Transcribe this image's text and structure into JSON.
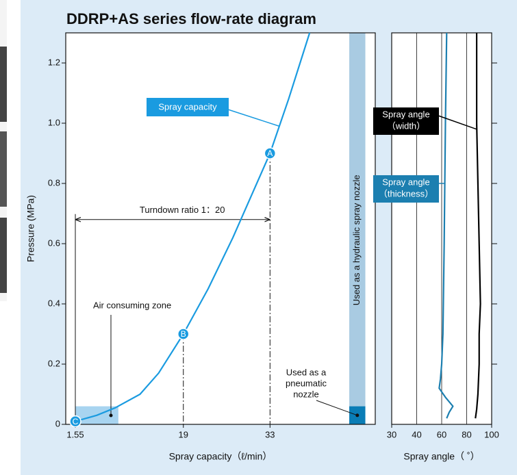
{
  "chart_data": [
    {
      "type": "line",
      "title": "DDRP+AS series flow-rate diagram",
      "x_label": "Spray capacity（ℓ/min）",
      "y_label": "Pressure (MPa)",
      "xlim": [
        0,
        50
      ],
      "ylim": [
        0,
        1.3
      ],
      "xticks": [
        1.55,
        19,
        33
      ],
      "yticks": [
        0,
        0.2,
        0.4,
        0.6,
        0.8,
        {
          "value": 1,
          "label": "1.0"
        },
        1.2
      ],
      "series": [
        {
          "name": "Spray capacity",
          "color": "#1a9be0",
          "x": [
            1.55,
            5,
            8,
            12,
            15,
            19,
            23,
            27,
            30,
            33,
            36,
            39.4
          ],
          "values": [
            0.01,
            0.03,
            0.055,
            0.1,
            0.17,
            0.3,
            0.45,
            0.62,
            0.76,
            0.9,
            1.08,
            1.3
          ]
        }
      ],
      "points": [
        {
          "label": "A",
          "x": 33,
          "y": 0.9
        },
        {
          "label": "B",
          "x": 19,
          "y": 0.3
        },
        {
          "label": "C",
          "x": 1.55,
          "y": 0.01
        }
      ],
      "turndown": {
        "label": "Turndown ratio 1：20",
        "x": [
          1.55,
          33
        ],
        "y": 0.68
      },
      "air_zone": {
        "label": "Air consuming zone",
        "x": [
          1.55,
          8.5
        ],
        "y": [
          0,
          0.06
        ],
        "color": "#a8d4f0"
      },
      "hydraulic_zone": {
        "label": "Used as a hydraulic spray nozzle",
        "x": [
          45.8,
          48.4
        ],
        "y": [
          0.06,
          1.3
        ],
        "color": "#a9cbe2"
      },
      "pneumatic_zone": {
        "label_lines": [
          "Used as a",
          "pneumatic",
          "nozzle"
        ],
        "x": [
          45.8,
          48.4
        ],
        "y": [
          0,
          0.06
        ],
        "color": "#0a7db6"
      }
    },
    {
      "type": "line",
      "x_label": "Spray angle（ ˚）",
      "xlim": [
        30,
        100
      ],
      "ylim": [
        0,
        1.3
      ],
      "xticks": [
        30,
        40,
        60,
        80,
        100
      ],
      "yticks": [
        0.2,
        0.4,
        0.6,
        0.8,
        1,
        1.2
      ],
      "grid": true,
      "series": [
        {
          "name_lines": [
            "Spray angle",
            "（width）"
          ],
          "color": "#000000",
          "box_color": "#000000",
          "y": [
            1.3,
            1.0,
            0.8,
            0.6,
            0.4,
            0.3,
            0.2,
            0.1,
            0.05,
            0.02
          ],
          "values": [
            88,
            88,
            89,
            90,
            91,
            90,
            90,
            89,
            88,
            87
          ]
        },
        {
          "name_lines": [
            "Spray angle",
            "（thickness）"
          ],
          "color": "#1c7fb0",
          "box_color": "#1c7fb0",
          "y": [
            1.3,
            1.0,
            0.6,
            0.3,
            0.2,
            0.15,
            0.12,
            0.09,
            0.06,
            0.04,
            0.02
          ],
          "values": [
            64,
            63,
            62,
            61,
            60,
            59,
            58,
            63,
            69,
            66,
            64
          ]
        }
      ]
    }
  ]
}
